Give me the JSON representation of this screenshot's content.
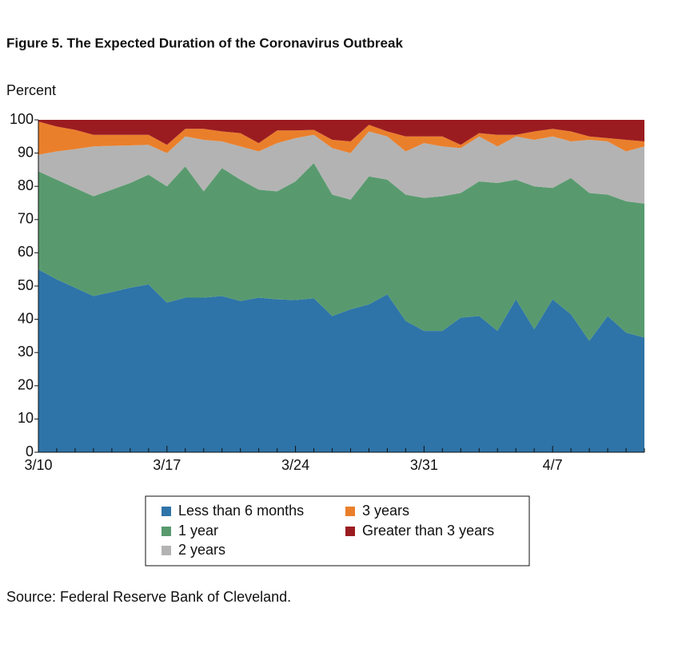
{
  "chart_data": {
    "type": "stacked_area",
    "title": "Figure 5. The Expected Duration of the Coronavirus Outbreak",
    "y_label": "Percent",
    "source": "Source: Federal Reserve Bank of Cleveland.",
    "categories": [
      "3/10",
      null,
      null,
      null,
      null,
      null,
      null,
      "3/17",
      null,
      null,
      null,
      null,
      null,
      null,
      "3/24",
      null,
      null,
      null,
      null,
      null,
      null,
      "3/31",
      null,
      null,
      null,
      null,
      null,
      null,
      "4/7",
      null,
      null,
      null,
      null,
      null
    ],
    "ylim": [
      0,
      100
    ],
    "yticks": [
      0,
      10,
      20,
      30,
      40,
      50,
      60,
      70,
      80,
      90,
      100
    ],
    "legend": "bottom",
    "series": [
      {
        "name": "Less than 6 months",
        "color": "#2e74a8",
        "values": [
          55,
          52,
          49.5,
          47,
          48.2,
          49.5,
          50.5,
          45,
          46.5,
          46.5,
          47,
          45.5,
          46.5,
          46,
          45.8,
          46.3,
          41,
          43,
          44.5,
          47.5,
          39.5,
          36.5,
          36.5,
          40.5,
          41,
          36.5,
          46,
          37,
          46,
          41.5,
          33.5,
          41,
          36,
          34.5
        ]
      },
      {
        "name": "1 year",
        "color": "#589a6e",
        "values": [
          29.5,
          30,
          30,
          30,
          30.8,
          31.5,
          33,
          35,
          39.5,
          32,
          38.5,
          36.5,
          32.5,
          32.5,
          35.7,
          40.7,
          36.5,
          33,
          38.5,
          34.5,
          38,
          40,
          40.5,
          37.5,
          40.5,
          44.5,
          36,
          43,
          33.5,
          41,
          44.5,
          36.5,
          39.5,
          40.3
        ]
      },
      {
        "name": "2 years",
        "color": "#b3b3b3",
        "values": [
          5,
          8.5,
          11.7,
          15,
          13.2,
          11.3,
          9,
          10,
          9,
          15.5,
          8,
          10,
          11.5,
          14.5,
          13,
          8.5,
          14,
          14,
          13.5,
          13,
          13,
          16.5,
          15,
          13.5,
          13.5,
          11,
          13,
          14,
          15.5,
          11,
          16,
          16,
          15,
          17.2
        ]
      },
      {
        "name": "3 years",
        "color": "#ea7f2b",
        "values": [
          10,
          7.5,
          5.8,
          3.5,
          3.3,
          3.2,
          3,
          2.5,
          2.3,
          3.3,
          3,
          4,
          2.5,
          3.8,
          2.3,
          1.5,
          2.5,
          3.5,
          2,
          1.5,
          4.5,
          2,
          3,
          1,
          1,
          3.5,
          0.5,
          2.5,
          2.3,
          3,
          1,
          1,
          3.5,
          1.5
        ]
      },
      {
        "name": "Greater than 3 years",
        "color": "#9b1c20",
        "values": [
          0.5,
          2,
          3,
          4.5,
          4.5,
          4.5,
          4.5,
          7.5,
          2.7,
          2.7,
          3.5,
          4,
          7,
          3.2,
          3.2,
          3,
          6,
          6.5,
          1.5,
          3.5,
          5,
          5,
          5,
          7.5,
          4,
          4.5,
          4.5,
          3.5,
          2.7,
          3.5,
          5,
          5.5,
          6,
          6.5
        ]
      }
    ]
  }
}
